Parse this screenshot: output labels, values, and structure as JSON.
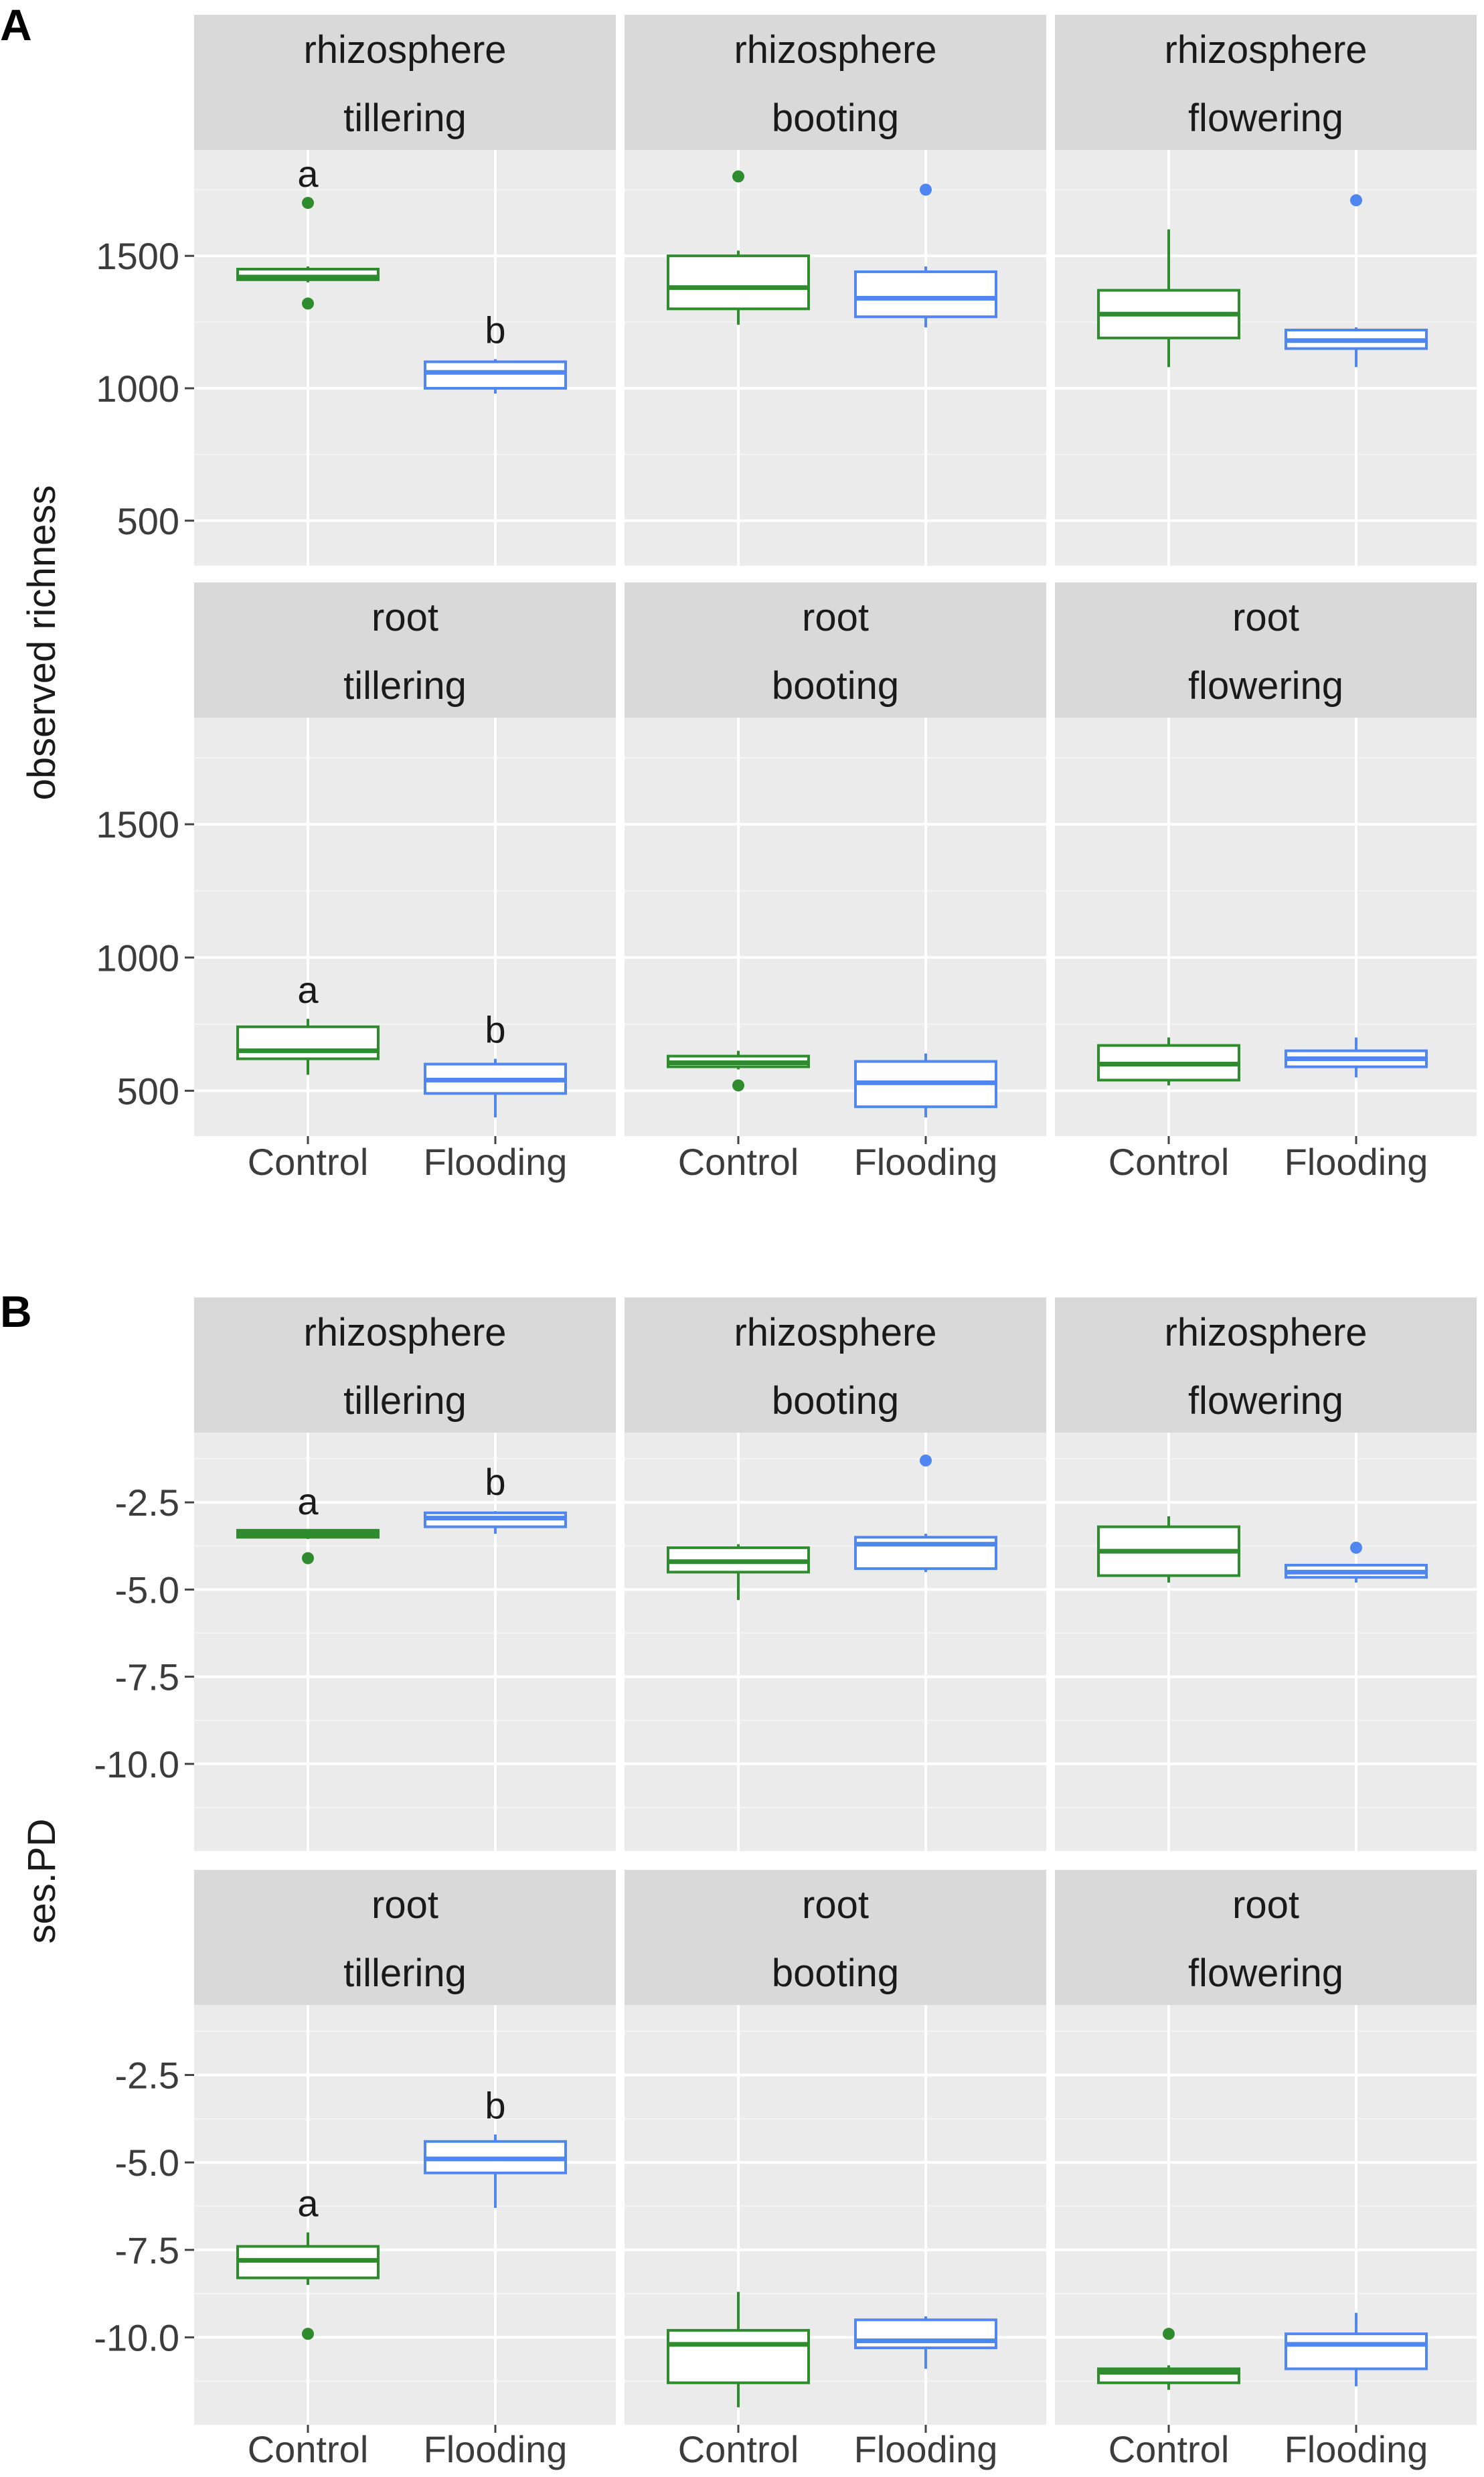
{
  "colors": {
    "control": "#2e8b2e",
    "flooding": "#4f86f0",
    "panel_bg": "#ebebeb",
    "strip_bg": "#d9d9d9",
    "grid_major": "#ffffff",
    "grid_minor": "#f4f4f4"
  },
  "chart_data": [
    {
      "id": "A",
      "type": "boxplot",
      "label": "A",
      "ylabel": "observed richness",
      "ylim": [
        330,
        1900
      ],
      "yticks": [
        500,
        1000,
        1500
      ],
      "ytick_labels": [
        "500",
        "1000",
        "1500"
      ],
      "groups": [
        "Control",
        "Flooding"
      ],
      "rows": [
        {
          "facets": [
            {
              "strip": [
                "rhizosphere",
                "tillering"
              ],
              "boxes": [
                {
                  "group": "Control",
                  "q1": 1410,
                  "median": 1420,
                  "q3": 1450,
                  "whisker_low": 1400,
                  "whisker_high": 1460,
                  "outliers": [
                    1700,
                    1320
                  ],
                  "sig": "a"
                },
                {
                  "group": "Flooding",
                  "q1": 1000,
                  "median": 1060,
                  "q3": 1100,
                  "whisker_low": 980,
                  "whisker_high": 1110,
                  "outliers": [],
                  "sig": "b"
                }
              ]
            },
            {
              "strip": [
                "rhizosphere",
                "booting"
              ],
              "boxes": [
                {
                  "group": "Control",
                  "q1": 1300,
                  "median": 1380,
                  "q3": 1500,
                  "whisker_low": 1240,
                  "whisker_high": 1520,
                  "outliers": [
                    1800
                  ],
                  "sig": ""
                },
                {
                  "group": "Flooding",
                  "q1": 1270,
                  "median": 1340,
                  "q3": 1440,
                  "whisker_low": 1230,
                  "whisker_high": 1460,
                  "outliers": [
                    1750
                  ],
                  "sig": ""
                }
              ]
            },
            {
              "strip": [
                "rhizosphere",
                "flowering"
              ],
              "boxes": [
                {
                  "group": "Control",
                  "q1": 1190,
                  "median": 1280,
                  "q3": 1370,
                  "whisker_low": 1080,
                  "whisker_high": 1600,
                  "outliers": [],
                  "sig": ""
                },
                {
                  "group": "Flooding",
                  "q1": 1150,
                  "median": 1180,
                  "q3": 1220,
                  "whisker_low": 1080,
                  "whisker_high": 1230,
                  "outliers": [
                    1710
                  ],
                  "sig": ""
                }
              ]
            }
          ]
        },
        {
          "facets": [
            {
              "strip": [
                "root",
                "tillering"
              ],
              "boxes": [
                {
                  "group": "Control",
                  "q1": 620,
                  "median": 650,
                  "q3": 740,
                  "whisker_low": 560,
                  "whisker_high": 770,
                  "outliers": [],
                  "sig": "a"
                },
                {
                  "group": "Flooding",
                  "q1": 490,
                  "median": 540,
                  "q3": 600,
                  "whisker_low": 400,
                  "whisker_high": 620,
                  "outliers": [],
                  "sig": "b"
                }
              ]
            },
            {
              "strip": [
                "root",
                "booting"
              ],
              "boxes": [
                {
                  "group": "Control",
                  "q1": 590,
                  "median": 605,
                  "q3": 630,
                  "whisker_low": 580,
                  "whisker_high": 650,
                  "outliers": [
                    520
                  ],
                  "sig": ""
                },
                {
                  "group": "Flooding",
                  "q1": 440,
                  "median": 530,
                  "q3": 610,
                  "whisker_low": 400,
                  "whisker_high": 640,
                  "outliers": [],
                  "sig": ""
                }
              ]
            },
            {
              "strip": [
                "root",
                "flowering"
              ],
              "boxes": [
                {
                  "group": "Control",
                  "q1": 540,
                  "median": 600,
                  "q3": 670,
                  "whisker_low": 520,
                  "whisker_high": 700,
                  "outliers": [],
                  "sig": ""
                },
                {
                  "group": "Flooding",
                  "q1": 590,
                  "median": 620,
                  "q3": 650,
                  "whisker_low": 550,
                  "whisker_high": 700,
                  "outliers": [],
                  "sig": ""
                }
              ]
            }
          ]
        }
      ]
    },
    {
      "id": "B",
      "type": "boxplot",
      "label": "B",
      "ylabel": "ses.PD",
      "ylim": [
        -12.5,
        -0.5
      ],
      "yticks": [
        -10.0,
        -7.5,
        -5.0,
        -2.5
      ],
      "ytick_labels": [
        "-10.0",
        "-7.5",
        "-5.0",
        "-2.5"
      ],
      "groups": [
        "Control",
        "Flooding"
      ],
      "rows": [
        {
          "facets": [
            {
              "strip": [
                "rhizosphere",
                "tillering"
              ],
              "boxes": [
                {
                  "group": "Control",
                  "q1": -3.5,
                  "median": -3.4,
                  "q3": -3.3,
                  "whisker_low": -3.55,
                  "whisker_high": -3.3,
                  "outliers": [
                    -4.1
                  ],
                  "sig": "a"
                },
                {
                  "group": "Flooding",
                  "q1": -3.2,
                  "median": -2.95,
                  "q3": -2.8,
                  "whisker_low": -3.4,
                  "whisker_high": -2.75,
                  "outliers": [],
                  "sig": "b"
                }
              ]
            },
            {
              "strip": [
                "rhizosphere",
                "booting"
              ],
              "boxes": [
                {
                  "group": "Control",
                  "q1": -4.5,
                  "median": -4.2,
                  "q3": -3.8,
                  "whisker_low": -5.3,
                  "whisker_high": -3.7,
                  "outliers": [],
                  "sig": ""
                },
                {
                  "group": "Flooding",
                  "q1": -4.4,
                  "median": -3.7,
                  "q3": -3.5,
                  "whisker_low": -4.5,
                  "whisker_high": -3.4,
                  "outliers": [
                    -1.3
                  ],
                  "sig": ""
                }
              ]
            },
            {
              "strip": [
                "rhizosphere",
                "flowering"
              ],
              "boxes": [
                {
                  "group": "Control",
                  "q1": -4.6,
                  "median": -3.9,
                  "q3": -3.2,
                  "whisker_low": -4.8,
                  "whisker_high": -2.9,
                  "outliers": [],
                  "sig": ""
                },
                {
                  "group": "Flooding",
                  "q1": -4.65,
                  "median": -4.5,
                  "q3": -4.3,
                  "whisker_low": -4.8,
                  "whisker_high": -4.3,
                  "outliers": [
                    -3.8
                  ],
                  "sig": ""
                }
              ]
            }
          ]
        },
        {
          "facets": [
            {
              "strip": [
                "root",
                "tillering"
              ],
              "boxes": [
                {
                  "group": "Control",
                  "q1": -8.3,
                  "median": -7.8,
                  "q3": -7.4,
                  "whisker_low": -8.5,
                  "whisker_high": -7.0,
                  "outliers": [
                    -9.9
                  ],
                  "sig": "a"
                },
                {
                  "group": "Flooding",
                  "q1": -5.3,
                  "median": -4.9,
                  "q3": -4.4,
                  "whisker_low": -6.3,
                  "whisker_high": -4.2,
                  "outliers": [],
                  "sig": "b"
                }
              ]
            },
            {
              "strip": [
                "root",
                "booting"
              ],
              "boxes": [
                {
                  "group": "Control",
                  "q1": -11.3,
                  "median": -10.2,
                  "q3": -9.8,
                  "whisker_low": -12.0,
                  "whisker_high": -8.7,
                  "outliers": [],
                  "sig": ""
                },
                {
                  "group": "Flooding",
                  "q1": -10.3,
                  "median": -10.1,
                  "q3": -9.5,
                  "whisker_low": -10.9,
                  "whisker_high": -9.4,
                  "outliers": [],
                  "sig": ""
                }
              ]
            },
            {
              "strip": [
                "root",
                "flowering"
              ],
              "boxes": [
                {
                  "group": "Control",
                  "q1": -11.3,
                  "median": -11.0,
                  "q3": -10.9,
                  "whisker_low": -11.5,
                  "whisker_high": -10.8,
                  "outliers": [
                    -9.9
                  ],
                  "sig": ""
                },
                {
                  "group": "Flooding",
                  "q1": -10.9,
                  "median": -10.2,
                  "q3": -9.9,
                  "whisker_low": -11.4,
                  "whisker_high": -9.3,
                  "outliers": [],
                  "sig": ""
                }
              ]
            }
          ]
        }
      ]
    }
  ]
}
